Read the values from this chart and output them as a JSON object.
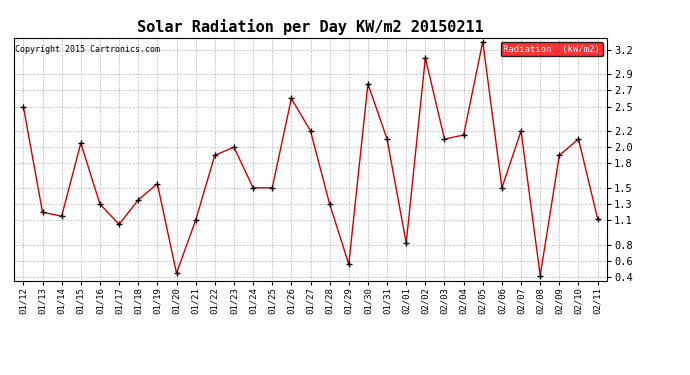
{
  "title": "Solar Radiation per Day KW/m2 20150211",
  "copyright": "Copyright 2015 Cartronics.com",
  "legend_label": "Radiation  (kW/m2)",
  "dates": [
    "01/12",
    "01/13",
    "01/14",
    "01/15",
    "01/16",
    "01/17",
    "01/18",
    "01/19",
    "01/20",
    "01/21",
    "01/22",
    "01/23",
    "01/24",
    "01/25",
    "01/26",
    "01/27",
    "01/28",
    "01/29",
    "01/30",
    "01/31",
    "02/01",
    "02/02",
    "02/03",
    "02/04",
    "02/05",
    "02/06",
    "02/07",
    "02/08",
    "02/09",
    "02/10",
    "02/11"
  ],
  "values": [
    2.5,
    1.2,
    1.15,
    2.05,
    1.3,
    1.05,
    1.35,
    1.55,
    0.45,
    1.1,
    1.9,
    2.0,
    1.5,
    1.5,
    2.6,
    2.2,
    1.3,
    0.56,
    2.78,
    2.1,
    0.82,
    3.1,
    2.1,
    2.15,
    3.3,
    1.5,
    2.2,
    0.42,
    1.9,
    2.1,
    1.12
  ],
  "line_color": "#cc0000",
  "marker_color": "#000000",
  "bg_color": "#ffffff",
  "plot_bg_color": "#ffffff",
  "grid_color": "#bbbbbb",
  "title_fontsize": 11,
  "yticks": [
    0.4,
    0.6,
    0.8,
    1.1,
    1.3,
    1.5,
    1.8,
    2.0,
    2.2,
    2.5,
    2.7,
    2.9,
    3.2
  ],
  "ylim": [
    0.35,
    3.35
  ],
  "legend_bg": "#ff0000",
  "legend_text_color": "#ffffff"
}
